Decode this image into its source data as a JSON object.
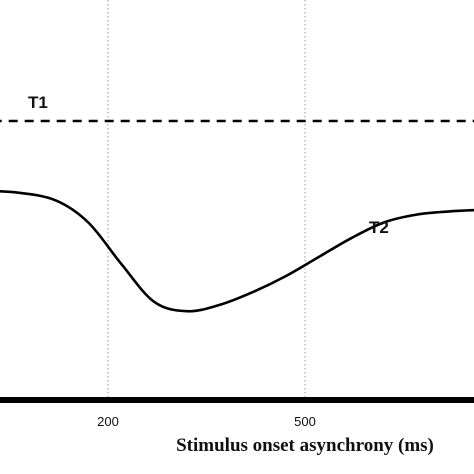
{
  "chart_data": {
    "type": "line",
    "title": "",
    "xlabel": "Stimulus onset asynchrony (ms)",
    "ylabel": "",
    "x_ticks": [
      {
        "value": 200,
        "label": "200"
      },
      {
        "value": 500,
        "label": "500"
      }
    ],
    "grid": {
      "vertical_dotted_at": [
        200,
        500
      ]
    },
    "series": [
      {
        "name": "T1",
        "style": "dashed",
        "x": [
          0,
          900
        ],
        "y": [
          0.88,
          0.88
        ]
      },
      {
        "name": "T2",
        "style": "solid",
        "x": [
          0,
          60,
          120,
          170,
          220,
          270,
          320,
          370,
          420,
          470,
          520,
          570,
          620,
          670,
          720,
          770,
          820,
          870,
          900
        ],
        "y": [
          0.66,
          0.655,
          0.63,
          0.56,
          0.43,
          0.31,
          0.28,
          0.3,
          0.34,
          0.39,
          0.45,
          0.51,
          0.56,
          0.585,
          0.595,
          0.6,
          0.605,
          0.61,
          0.615
        ]
      }
    ],
    "series_label_positions": {
      "T1": "above-left",
      "T2": "right-of-curve"
    },
    "colors": {
      "line": "#000000",
      "grid": "#999999",
      "axis": "#000000"
    }
  }
}
